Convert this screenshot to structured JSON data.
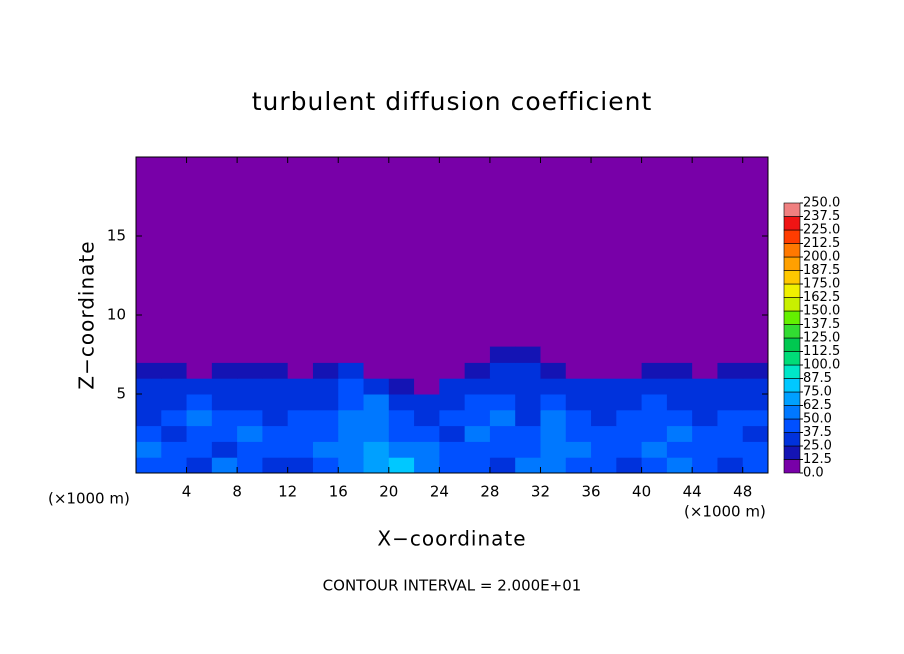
{
  "chart_data": {
    "type": "contour",
    "title": "turbulent diffusion coefficient",
    "xlabel": "X−coordinate",
    "ylabel": "Z−coordinate",
    "x_unit_label": "(×1000 m)",
    "x_unit_label_right": "(×1000 m)",
    "footer": "CONTOUR INTERVAL = 2.000E+01",
    "xlim": [
      0,
      50
    ],
    "ylim": [
      0,
      20
    ],
    "xticks": [
      4,
      8,
      12,
      16,
      20,
      24,
      28,
      32,
      36,
      40,
      44,
      48
    ],
    "yticks": [
      5,
      10,
      15
    ],
    "colorbar_ticks": [
      {
        "value": 0,
        "label": "0.0"
      },
      {
        "value": 12.5,
        "label": "12.5"
      },
      {
        "value": 25,
        "label": "25.0"
      },
      {
        "value": 37.5,
        "label": "37.5"
      },
      {
        "value": 50,
        "label": "50.0"
      },
      {
        "value": 62.5,
        "label": "62.5"
      },
      {
        "value": 75,
        "label": "75.0"
      },
      {
        "value": 87.5,
        "label": "87.5"
      },
      {
        "value": 100,
        "label": "100.0"
      },
      {
        "value": 112.5,
        "label": "112.5"
      },
      {
        "value": 125,
        "label": "125.0"
      },
      {
        "value": 137.5,
        "label": "137.5"
      },
      {
        "value": 150,
        "label": "150.0"
      },
      {
        "value": 162.5,
        "label": "162.5"
      },
      {
        "value": 175,
        "label": "175.0"
      },
      {
        "value": 187.5,
        "label": "187.5"
      },
      {
        "value": 200,
        "label": "200.0"
      },
      {
        "value": 212.5,
        "label": "212.5"
      },
      {
        "value": 225,
        "label": "225.0"
      },
      {
        "value": 237.5,
        "label": "237.5"
      },
      {
        "value": 250,
        "label": "250.0"
      }
    ],
    "colors": [
      "#7800a8",
      "#1414b4",
      "#0032dc",
      "#0050ff",
      "#0078ff",
      "#00a0ff",
      "#00c8ff",
      "#00e6c8",
      "#00dc78",
      "#00c850",
      "#32dc32",
      "#64f000",
      "#c8f000",
      "#f0f000",
      "#ffc800",
      "#ffa000",
      "#ff7800",
      "#ff3c00",
      "#f01414",
      "#f08080"
    ],
    "field_x": [
      0,
      2,
      4,
      6,
      8,
      10,
      12,
      14,
      16,
      18,
      20,
      22,
      24,
      26,
      28,
      30,
      32,
      34,
      36,
      38,
      40,
      42,
      44,
      46,
      48,
      50
    ],
    "field_z": [
      0,
      1,
      2,
      3,
      4,
      5,
      6,
      7,
      8
    ],
    "field_values": [
      [
        45,
        40,
        35,
        50,
        40,
        30,
        35,
        45,
        55,
        70,
        80,
        60,
        45,
        40,
        35,
        50,
        55,
        45,
        40,
        35,
        45,
        50,
        40,
        35,
        45
      ],
      [
        50,
        45,
        40,
        35,
        45,
        40,
        45,
        50,
        60,
        65,
        55,
        50,
        40,
        45,
        40,
        45,
        60,
        50,
        45,
        40,
        50,
        45,
        40,
        45,
        40
      ],
      [
        40,
        35,
        45,
        40,
        50,
        45,
        40,
        45,
        55,
        60,
        45,
        40,
        35,
        50,
        45,
        40,
        55,
        45,
        40,
        45,
        40,
        50,
        45,
        40,
        35
      ],
      [
        35,
        40,
        50,
        45,
        40,
        35,
        45,
        40,
        50,
        55,
        40,
        35,
        40,
        45,
        50,
        35,
        50,
        40,
        35,
        40,
        45,
        40,
        35,
        40,
        40
      ],
      [
        30,
        35,
        40,
        35,
        35,
        30,
        35,
        35,
        45,
        50,
        30,
        28,
        35,
        40,
        45,
        30,
        45,
        35,
        30,
        35,
        40,
        35,
        30,
        35,
        35
      ],
      [
        25,
        30,
        30,
        25,
        30,
        25,
        30,
        30,
        40,
        35,
        20,
        12,
        30,
        30,
        35,
        25,
        35,
        30,
        25,
        30,
        30,
        30,
        25,
        30,
        30
      ],
      [
        20,
        20,
        12,
        20,
        20,
        20,
        12,
        20,
        30,
        12,
        0,
        0,
        12,
        20,
        25,
        25,
        20,
        12,
        12,
        12,
        20,
        20,
        12,
        20,
        20
      ],
      [
        12,
        12,
        0,
        12,
        12,
        12,
        0,
        12,
        12,
        0,
        0,
        0,
        0,
        12,
        20,
        20,
        12,
        0,
        0,
        0,
        12,
        12,
        0,
        12,
        12
      ]
    ]
  }
}
